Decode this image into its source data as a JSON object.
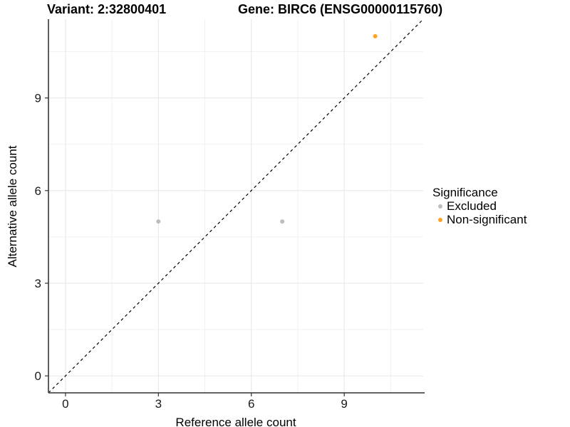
{
  "titles": {
    "left": "Variant: 2:32800401",
    "right": "Gene: BIRC6 (ENSG00000115760)"
  },
  "chart_data": {
    "type": "scatter",
    "xlabel": "Reference allele count",
    "ylabel": "Alternative allele count",
    "xlim": [
      -0.55,
      11.55
    ],
    "ylim": [
      -0.55,
      11.55
    ],
    "x_ticks": [
      0,
      3,
      6,
      9
    ],
    "y_ticks": [
      0,
      3,
      6,
      9
    ],
    "x_minor": [
      1.5,
      4.5,
      7.5,
      10.5
    ],
    "y_minor": [
      1.5,
      4.5,
      7.5,
      10.5
    ],
    "grid": true,
    "identity_line": {
      "type": "dashed",
      "color": "#000000",
      "x1": -0.55,
      "y1": -0.55,
      "x2": 11.55,
      "y2": 11.55
    },
    "series": [
      {
        "name": "Excluded",
        "color": "#BDBDBD",
        "points": [
          [
            3,
            5
          ],
          [
            7,
            5
          ]
        ]
      },
      {
        "name": "Non-significant",
        "color": "#FFA320",
        "points": [
          [
            10,
            11
          ]
        ]
      }
    ],
    "legend": {
      "title": "Significance",
      "position": "right",
      "entries": [
        {
          "label": "Excluded",
          "color": "#BDBDBD"
        },
        {
          "label": "Non-significant",
          "color": "#FFA320"
        }
      ]
    }
  },
  "style_colors": {
    "grid_major": "#E6E6E6",
    "grid_minor": "#F2F2F2",
    "axis_line": "#4D4D4D",
    "tick_mark": "#333333",
    "tick_text": "#1A1A1A"
  }
}
